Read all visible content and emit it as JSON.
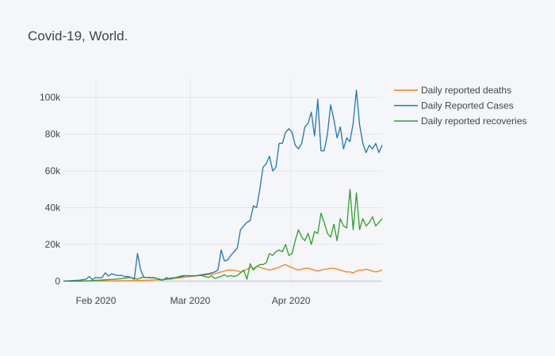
{
  "chart_data": {
    "type": "line",
    "title": "Covid-19, World.",
    "xlabel": "",
    "ylabel": "",
    "x_start": "2020-01-22",
    "x_end": "2020-04-29",
    "x_ticks": [
      {
        "date": "2020-02-01",
        "label": "Feb 2020"
      },
      {
        "date": "2020-03-01",
        "label": "Mar 2020"
      },
      {
        "date": "2020-04-01",
        "label": "Apr 2020"
      }
    ],
    "ylim": [
      -2000,
      110000
    ],
    "y_ticks": [
      {
        "value": 0,
        "label": "0"
      },
      {
        "value": 20000,
        "label": "20k"
      },
      {
        "value": 40000,
        "label": "40k"
      },
      {
        "value": 60000,
        "label": "60k"
      },
      {
        "value": 80000,
        "label": "80k"
      },
      {
        "value": 100000,
        "label": "100k"
      }
    ],
    "grid": true,
    "legend_position": "top-right",
    "series": [
      {
        "name": "Daily reported deaths",
        "color": "#ff7f0e",
        "values": [
          0,
          10,
          20,
          30,
          40,
          50,
          60,
          70,
          80,
          90,
          100,
          110,
          120,
          130,
          140,
          150,
          160,
          180,
          200,
          220,
          240,
          260,
          280,
          300,
          350,
          400,
          450,
          500,
          600,
          700,
          800,
          900,
          1000,
          1200,
          1400,
          1600,
          1800,
          2000,
          2200,
          2400,
          2600,
          2800,
          3000,
          3200,
          3400,
          3600,
          3800,
          4000,
          4500,
          5000,
          5500,
          6000,
          6000,
          6000,
          5500,
          5000,
          5500,
          6500,
          7500,
          7000,
          8000,
          7500,
          7000,
          6500,
          6000,
          6500,
          7000,
          7500,
          8500,
          9000,
          8000,
          7500,
          6500,
          6000,
          6500,
          7000,
          7000,
          6500,
          6000,
          5500,
          6000,
          6500,
          6500,
          7000,
          7000,
          6500,
          6000,
          5500,
          5000,
          5000,
          4500,
          5500,
          6000,
          6000,
          6500,
          6000,
          5500,
          5000,
          5500,
          6000
        ]
      },
      {
        "name": "Daily Reported Cases",
        "color": "#1f77b4",
        "values": [
          0,
          100,
          200,
          300,
          400,
          500,
          800,
          1000,
          2500,
          800,
          2000,
          1800,
          2000,
          4500,
          2800,
          4000,
          3500,
          3000,
          3200,
          2500,
          2500,
          2000,
          1000,
          15000,
          6000,
          2000,
          2000,
          1800,
          2000,
          1500,
          600,
          800,
          1000,
          1500,
          1800,
          2000,
          2200,
          2500,
          3000,
          2800,
          3000,
          2800,
          3200,
          3500,
          3800,
          4000,
          4500,
          5000,
          6000,
          17000,
          11000,
          11500,
          14000,
          16000,
          18000,
          28000,
          30000,
          32000,
          33000,
          41000,
          40000,
          50000,
          62000,
          64000,
          68000,
          60000,
          62000,
          75000,
          75000,
          81000,
          83000,
          81000,
          74000,
          72000,
          75000,
          84000,
          86000,
          92000,
          79000,
          99000,
          71000,
          71000,
          80000,
          96000,
          88000,
          78000,
          84000,
          72000,
          78000,
          76000,
          86000,
          104000,
          85000,
          75000,
          70000,
          74000,
          72000,
          75000,
          70000,
          74000
        ]
      },
      {
        "name": "Daily reported recoveries",
        "color": "#2ca02c",
        "values": [
          0,
          5,
          10,
          20,
          40,
          60,
          100,
          150,
          200,
          300,
          400,
          500,
          600,
          700,
          800,
          900,
          1000,
          1200,
          1400,
          1600,
          1800,
          2000,
          1500,
          1000,
          1800,
          2200,
          2000,
          2000,
          1800,
          1500,
          1000,
          500,
          2000,
          1000,
          1500,
          2000,
          2500,
          3000,
          3000,
          3000,
          2800,
          3000,
          3200,
          3000,
          2500,
          2000,
          3000,
          1500,
          2000,
          2500,
          3500,
          2500,
          3000,
          2500,
          3000,
          4500,
          6000,
          1000,
          9500,
          6000,
          8000,
          9000,
          9000,
          10000,
          15000,
          14000,
          16000,
          17000,
          16000,
          20000,
          14000,
          15000,
          22000,
          28000,
          24000,
          22000,
          26000,
          20000,
          27000,
          26000,
          37000,
          32000,
          26000,
          24000,
          31000,
          22000,
          34000,
          30000,
          29000,
          50000,
          28000,
          48000,
          28000,
          34000,
          30000,
          32000,
          35000,
          30000,
          32000,
          34000
        ]
      }
    ]
  }
}
